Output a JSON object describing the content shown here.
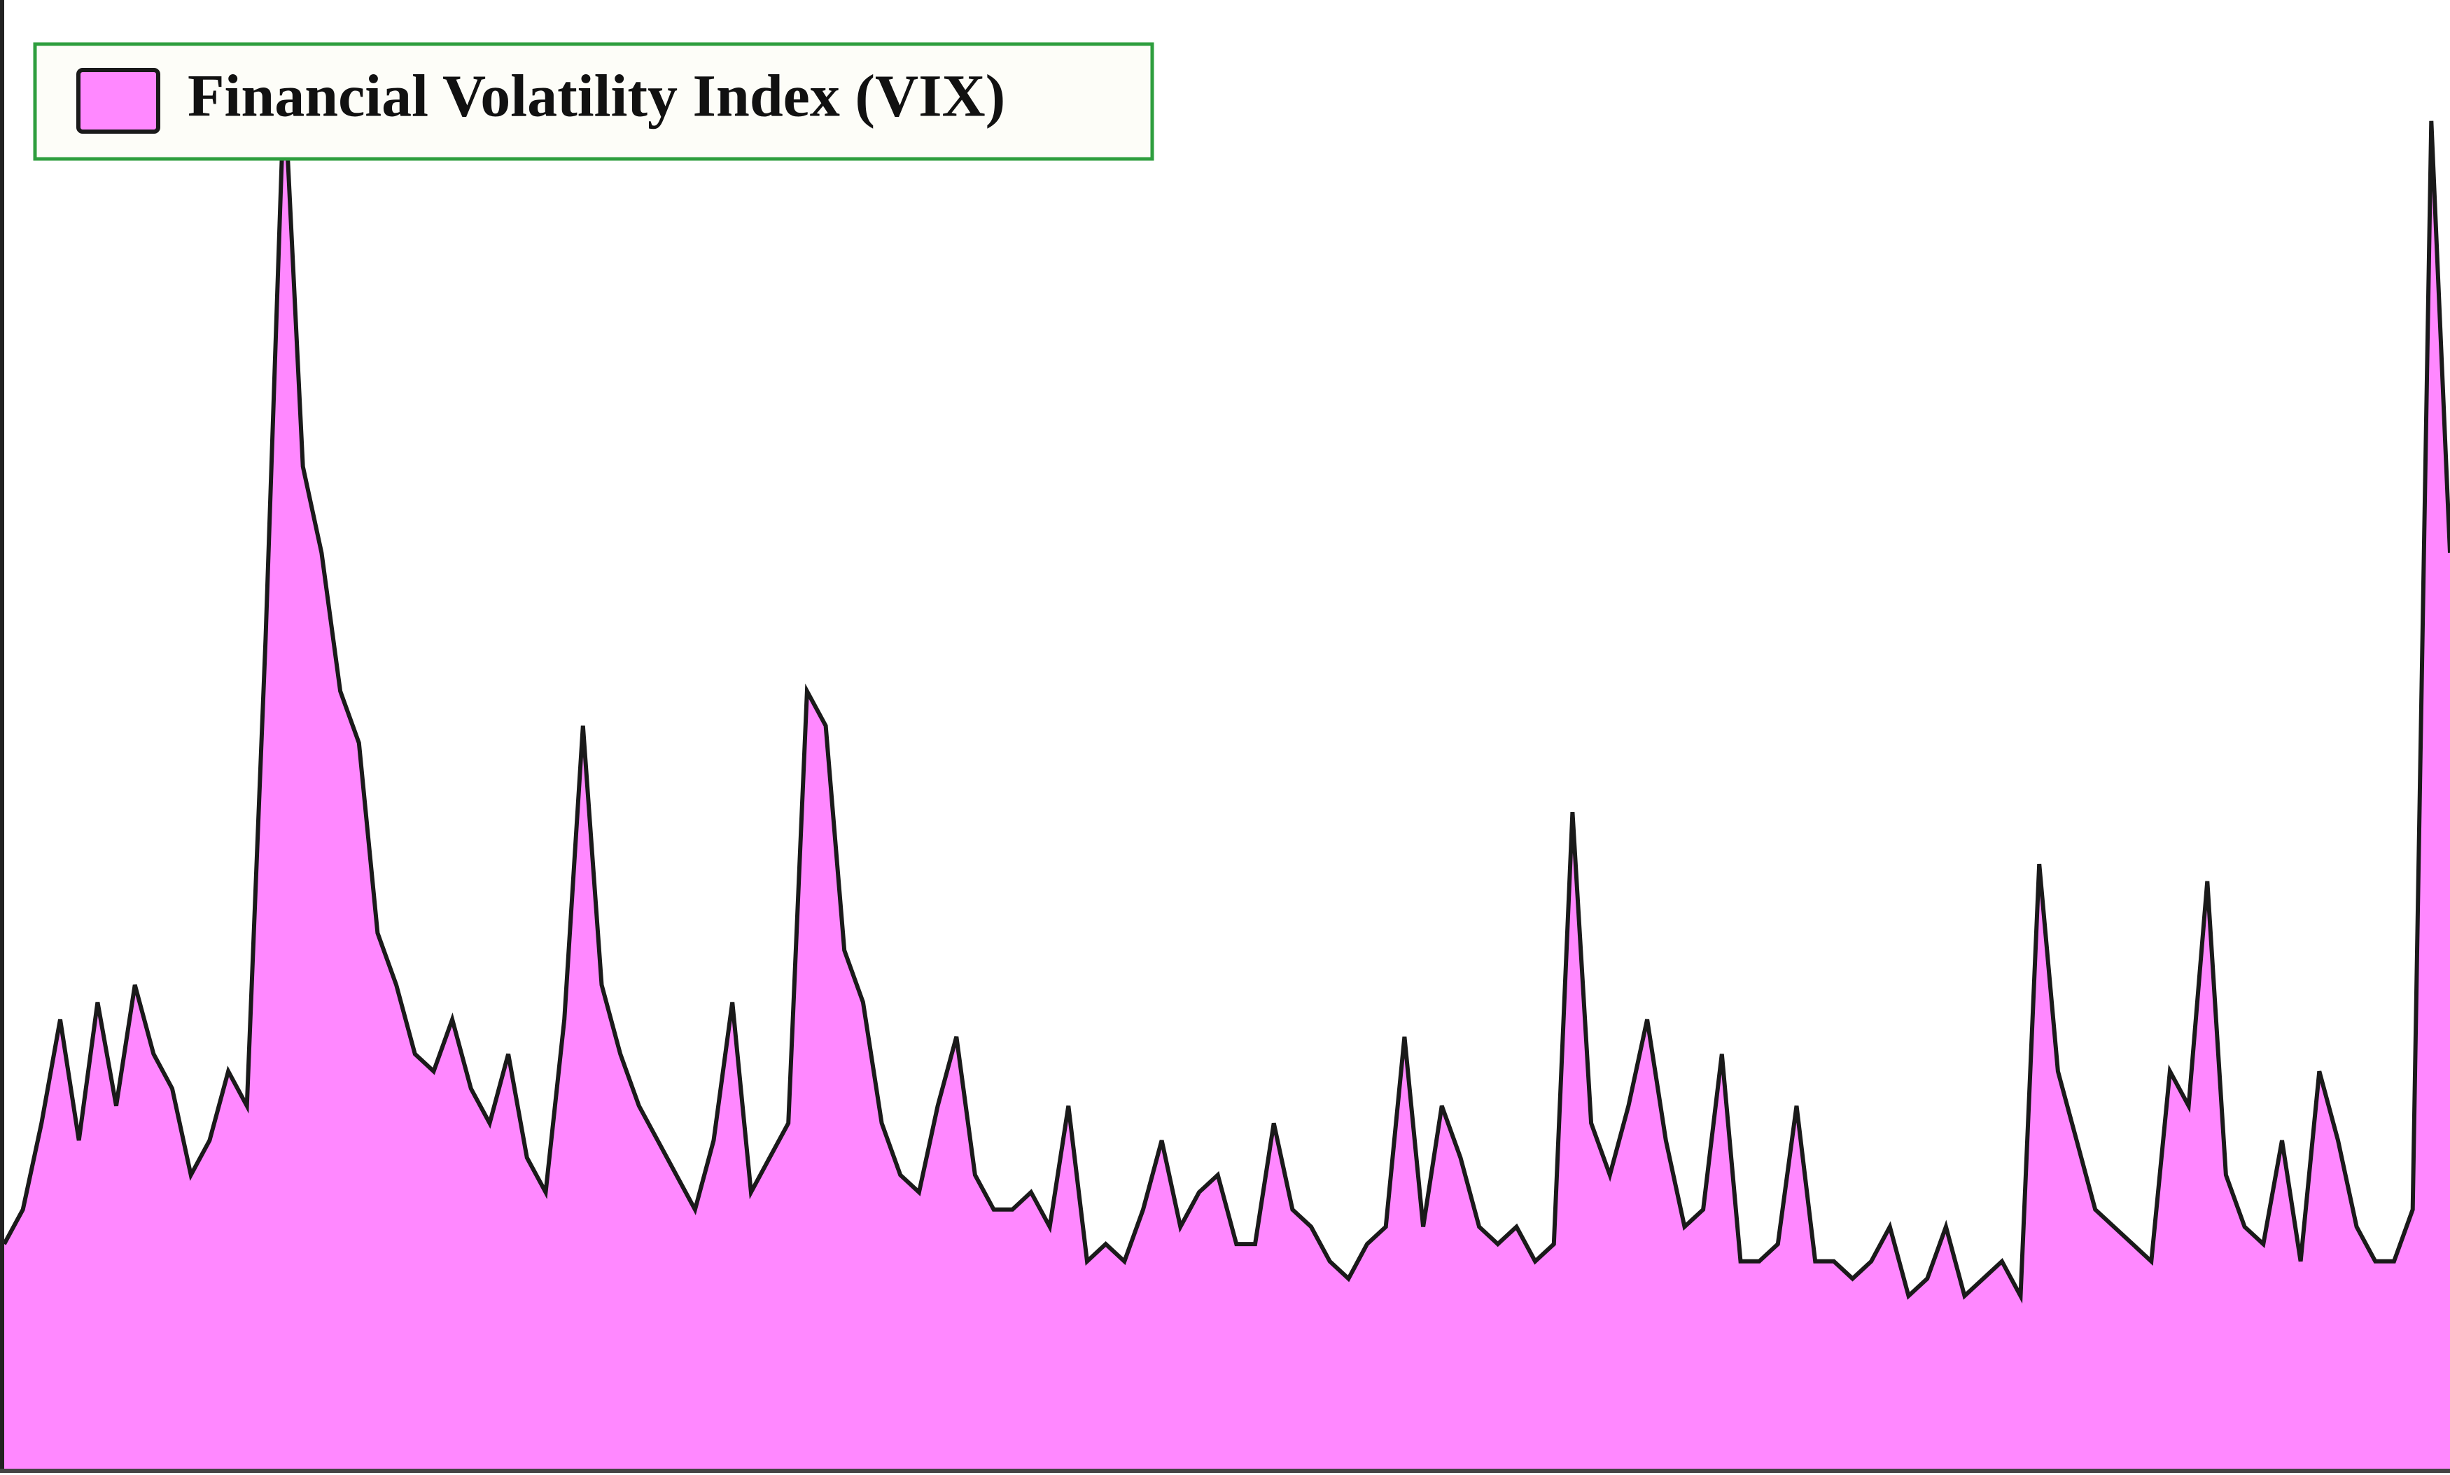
{
  "chart_data": {
    "type": "area",
    "series": [
      {
        "name": "Financial Volatility Index (VIX)",
        "color": "#ff88ff",
        "line_color": "#1a1a1a",
        "values": [
          13,
          15,
          20,
          26,
          19,
          27,
          21,
          28,
          24,
          22,
          17,
          19,
          23,
          21,
          48,
          80,
          58,
          53,
          45,
          42,
          31,
          28,
          24,
          23,
          26,
          22,
          20,
          24,
          18,
          16,
          26,
          43,
          28,
          24,
          21,
          19,
          17,
          15,
          19,
          27,
          16,
          18,
          20,
          45,
          43,
          30,
          27,
          20,
          17,
          16,
          21,
          25,
          17,
          15,
          15,
          16,
          14,
          21,
          12,
          13,
          12,
          15,
          19,
          14,
          16,
          17,
          13,
          13,
          20,
          15,
          14,
          12,
          11,
          13,
          14,
          25,
          14,
          21,
          18,
          14,
          13,
          14,
          12,
          13,
          38,
          20,
          17,
          21,
          26,
          19,
          14,
          15,
          24,
          12,
          12,
          13,
          21,
          12,
          12,
          11,
          12,
          14,
          10,
          11,
          14,
          10,
          11,
          12,
          10,
          35,
          23,
          19,
          15,
          14,
          13,
          12,
          23,
          21,
          34,
          17,
          14,
          13,
          19,
          12,
          23,
          19,
          14,
          12,
          12,
          15,
          78,
          53
        ]
      }
    ],
    "ylim": [
      0,
      85
    ],
    "legend": "upper left",
    "grid": false
  }
}
